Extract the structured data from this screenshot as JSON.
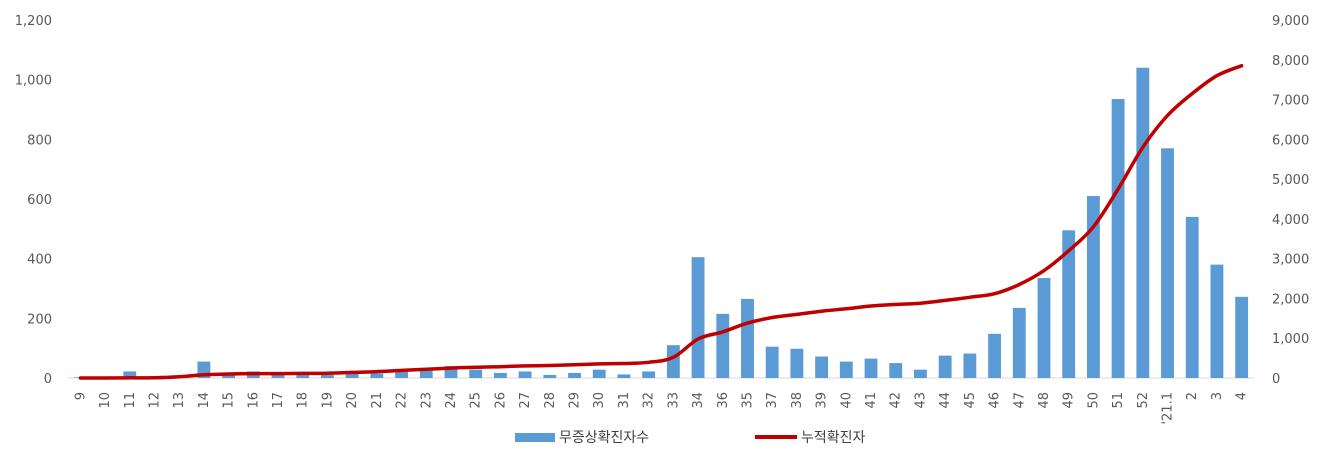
{
  "chart_data": {
    "type": "bar",
    "categories": [
      "9",
      "10",
      "11",
      "12",
      "13",
      "14",
      "15",
      "16",
      "17",
      "18",
      "19",
      "20",
      "21",
      "22",
      "23",
      "24",
      "25",
      "26",
      "27",
      "28",
      "29",
      "30",
      "31",
      "32",
      "33",
      "34",
      "36",
      "35",
      "37",
      "38",
      "39",
      "40",
      "41",
      "42",
      "43",
      "44",
      "45",
      "46",
      "47",
      "48",
      "49",
      "50",
      "51",
      "52",
      "'21.1",
      "2",
      "3",
      "4"
    ],
    "series": [
      {
        "name": "무증상확진자수",
        "type": "bar",
        "axis": "left",
        "color": "#5B9BD5",
        "values": [
          2,
          1,
          22,
          4,
          3,
          55,
          18,
          22,
          12,
          10,
          10,
          20,
          15,
          25,
          28,
          40,
          28,
          17,
          22,
          10,
          17,
          28,
          12,
          22,
          110,
          405,
          215,
          265,
          105,
          98,
          72,
          55,
          65,
          50,
          28,
          75,
          82,
          148,
          235,
          335,
          495,
          610,
          935,
          1040,
          770,
          540,
          380,
          272
        ]
      },
      {
        "name": "누적확진자",
        "type": "line",
        "axis": "right",
        "color": "#C00000",
        "values": [
          0,
          0,
          5,
          5,
          30,
          80,
          100,
          110,
          110,
          115,
          120,
          140,
          160,
          190,
          220,
          250,
          270,
          285,
          305,
          315,
          335,
          355,
          365,
          395,
          520,
          980,
          1160,
          1380,
          1520,
          1600,
          1680,
          1740,
          1810,
          1850,
          1880,
          1950,
          2030,
          2120,
          2350,
          2700,
          3200,
          3800,
          4750,
          5800,
          6600,
          7150,
          7600,
          7850
        ]
      }
    ],
    "left_axis": {
      "min": 0,
      "max": 1200,
      "ticks": [
        "0",
        "200",
        "400",
        "600",
        "800",
        "1,000",
        "1,200"
      ],
      "tick_values": [
        0,
        200,
        400,
        600,
        800,
        1000,
        1200
      ]
    },
    "right_axis": {
      "min": 0,
      "max": 9000,
      "ticks": [
        "0",
        "1,000",
        "2,000",
        "3,000",
        "4,000",
        "5,000",
        "6,000",
        "7,000",
        "8,000",
        "9,000"
      ],
      "tick_values": [
        0,
        1000,
        2000,
        3000,
        4000,
        5000,
        6000,
        7000,
        8000,
        9000
      ]
    },
    "legend": {
      "placement": "bottom",
      "items": [
        "무증상확진자수",
        "누적확진자"
      ]
    },
    "grid": false,
    "title": "",
    "xlabel": "",
    "ylabel": ""
  }
}
